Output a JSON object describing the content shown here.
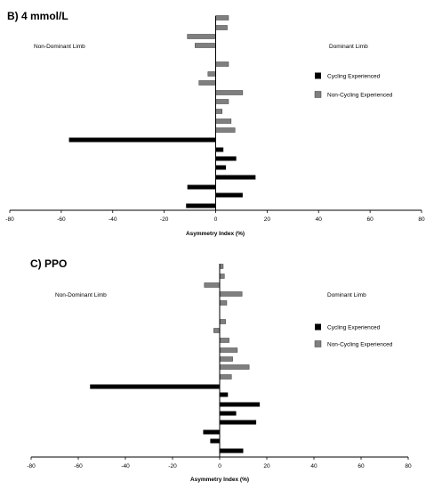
{
  "chart_data": [
    {
      "type": "bar",
      "orientation": "horizontal",
      "title": "B) 4 mmol/L",
      "xlabel": "Asymmetry Index (%)",
      "xlim": [
        -80,
        80
      ],
      "xticks": [
        -80,
        -60,
        -40,
        -20,
        0,
        20,
        40,
        60,
        80
      ],
      "left_label": "Non-Dominant Limb",
      "right_label": "Dominant Limb",
      "legend_position": "right",
      "grid": false,
      "series": [
        {
          "name": "Cycling Experienced",
          "color": "#000000",
          "values": [
            -11.5,
            10.5,
            -11,
            15.5,
            4,
            8,
            3,
            -57
          ]
        },
        {
          "name": "Non-Cycling Experienced",
          "color": "#7f7f7f",
          "values": [
            7.5,
            6,
            2.5,
            5,
            10.5,
            -6.5,
            -3,
            5,
            0,
            -8,
            -11,
            4.5,
            5
          ]
        }
      ]
    },
    {
      "type": "bar",
      "orientation": "horizontal",
      "title": "C) PPO",
      "xlabel": "Asymmetry Index (%)",
      "xlim": [
        -80,
        80
      ],
      "xticks": [
        -80,
        -60,
        -40,
        -20,
        0,
        20,
        40,
        60,
        80
      ],
      "left_label": "Non-Dominant Limb",
      "right_label": "Dominant Limb",
      "legend_position": "right",
      "grid": false,
      "series": [
        {
          "name": "Cycling Experienced",
          "color": "#000000",
          "values": [
            10,
            -4,
            -7,
            15.5,
            7,
            17,
            3.5,
            -55
          ]
        },
        {
          "name": "Non-Cycling Experienced",
          "color": "#7f7f7f",
          "values": [
            5,
            12.5,
            5.5,
            7.5,
            4,
            -2.5,
            2.5,
            0,
            3,
            9.5,
            -6.5,
            2,
            1.5
          ]
        }
      ]
    }
  ]
}
